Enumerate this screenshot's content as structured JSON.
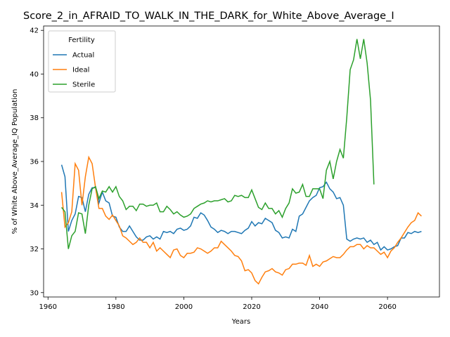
{
  "chart_data": {
    "type": "line",
    "title": "Score_2_in_AFRAID_TO_WALK_IN_THE_DARK_for_White_Above_Average_I",
    "x_label": "Years",
    "y_label": "% of White Above_Average_IQ Population",
    "legend_title": "Fertility",
    "legend_position": "upper left",
    "x": [
      1964,
      1965,
      1966,
      1967,
      1968,
      1969,
      1970,
      1971,
      1972,
      1973,
      1974,
      1975,
      1976,
      1977,
      1978,
      1979,
      1980,
      1981,
      1982,
      1983,
      1984,
      1985,
      1986,
      1987,
      1988,
      1989,
      1990,
      1991,
      1992,
      1993,
      1994,
      1995,
      1996,
      1997,
      1998,
      1999,
      2000,
      2001,
      2002,
      2003,
      2004,
      2005,
      2006,
      2007,
      2008,
      2009,
      2010,
      2011,
      2012,
      2013,
      2014,
      2015,
      2016,
      2017,
      2018,
      2019,
      2020,
      2021,
      2022,
      2023,
      2024,
      2025,
      2026,
      2027,
      2028,
      2029,
      2030,
      2031,
      2032,
      2033,
      2034,
      2035,
      2036,
      2037,
      2038,
      2039,
      2040,
      2041,
      2042,
      2043,
      2044,
      2045,
      2046,
      2047,
      2048,
      2049,
      2050,
      2051,
      2052,
      2053,
      2054,
      2055,
      2056,
      2057,
      2058,
      2059,
      2060,
      2061,
      2062,
      2063,
      2064,
      2065,
      2066,
      2067,
      2068,
      2069,
      2070
    ],
    "series": [
      {
        "name": "Actual",
        "color": "#1f77b4",
        "values": [
          35.85,
          35.3,
          32.8,
          33.3,
          33.6,
          34.4,
          34.35,
          33.7,
          34.5,
          34.8,
          34.8,
          34.1,
          34.6,
          34.2,
          34.1,
          33.5,
          33.45,
          33.0,
          32.8,
          32.8,
          33.05,
          32.8,
          32.55,
          32.4,
          32.4,
          32.55,
          32.6,
          32.45,
          32.55,
          32.45,
          32.8,
          32.75,
          32.8,
          32.7,
          32.9,
          32.95,
          32.85,
          32.9,
          33.05,
          33.45,
          33.4,
          33.65,
          33.55,
          33.3,
          33.0,
          32.9,
          32.75,
          32.85,
          32.8,
          32.7,
          32.8,
          32.8,
          32.75,
          32.7,
          32.85,
          32.95,
          33.25,
          33.05,
          33.2,
          33.15,
          33.4,
          33.3,
          33.2,
          32.85,
          32.75,
          32.5,
          32.55,
          32.5,
          32.9,
          32.8,
          33.5,
          33.6,
          33.9,
          34.2,
          34.35,
          34.45,
          34.8,
          34.85,
          35.05,
          34.75,
          34.6,
          34.3,
          34.35,
          34.0,
          32.45,
          32.35,
          32.45,
          32.5,
          32.45,
          32.5,
          32.3,
          32.4,
          32.2,
          32.3,
          31.95,
          32.1,
          31.95,
          32.0,
          32.1,
          32.15,
          32.5,
          32.5,
          32.75,
          32.7,
          32.8,
          32.75,
          32.8
        ]
      },
      {
        "name": "Ideal",
        "color": "#ff7f0e",
        "values": [
          34.6,
          33.0,
          33.2,
          33.7,
          35.9,
          35.6,
          34.0,
          35.3,
          36.2,
          35.9,
          34.8,
          33.85,
          33.85,
          33.5,
          33.35,
          33.55,
          33.3,
          33.05,
          32.6,
          32.5,
          32.35,
          32.2,
          32.3,
          32.5,
          32.3,
          32.3,
          32.05,
          32.3,
          31.9,
          32.05,
          31.9,
          31.75,
          31.6,
          31.95,
          32.0,
          31.7,
          31.6,
          31.8,
          31.8,
          31.85,
          32.05,
          32.0,
          31.9,
          31.8,
          31.9,
          32.05,
          32.05,
          32.35,
          32.2,
          32.05,
          31.9,
          31.7,
          31.65,
          31.45,
          31.0,
          31.05,
          30.9,
          30.55,
          30.4,
          30.7,
          30.95,
          31.0,
          31.1,
          30.95,
          30.9,
          30.8,
          31.05,
          31.1,
          31.3,
          31.3,
          31.35,
          31.35,
          31.25,
          31.7,
          31.2,
          31.3,
          31.2,
          31.4,
          31.45,
          31.55,
          31.65,
          31.6,
          31.6,
          31.75,
          31.95,
          32.1,
          32.1,
          32.2,
          32.2,
          32.0,
          32.15,
          32.05,
          32.05,
          31.9,
          31.75,
          31.85,
          31.6,
          31.9,
          32.05,
          32.3,
          32.5,
          32.75,
          33.0,
          33.2,
          33.3,
          33.65,
          33.5
        ]
      },
      {
        "name": "Sterile",
        "color": "#2ca02c",
        "values": [
          33.9,
          33.7,
          32.0,
          32.6,
          32.8,
          33.65,
          33.6,
          32.7,
          34.0,
          34.75,
          34.85,
          34.3,
          34.65,
          34.6,
          34.85,
          34.6,
          34.85,
          34.4,
          34.2,
          33.8,
          33.95,
          33.95,
          33.75,
          34.05,
          34.05,
          33.95,
          34.0,
          34.0,
          34.1,
          33.7,
          33.7,
          33.95,
          33.8,
          33.6,
          33.7,
          33.55,
          33.45,
          33.5,
          33.6,
          33.85,
          33.95,
          34.05,
          34.1,
          34.2,
          34.15,
          34.2,
          34.2,
          34.25,
          34.3,
          34.15,
          34.2,
          34.45,
          34.4,
          34.45,
          34.35,
          34.35,
          34.7,
          34.3,
          33.9,
          33.8,
          34.1,
          33.85,
          33.85,
          33.6,
          33.75,
          33.45,
          33.85,
          34.1,
          34.75,
          34.55,
          34.6,
          34.95,
          34.4,
          34.4,
          34.75,
          34.75,
          34.75,
          34.3,
          35.6,
          36.0,
          35.2,
          36.0,
          36.55,
          36.15,
          38.0,
          40.2,
          40.65,
          41.6,
          40.7,
          41.6,
          40.5,
          38.8,
          34.95,
          null,
          null,
          null,
          null,
          null,
          null,
          null,
          null,
          null,
          null,
          null,
          null,
          null,
          null
        ]
      }
    ],
    "xlim": [
      1958.7,
      2075.3
    ],
    "ylim": [
      29.8,
      42.2
    ],
    "xticks": [
      1960,
      1980,
      2000,
      2020,
      2040,
      2060
    ],
    "yticks": [
      30,
      32,
      34,
      36,
      38,
      40,
      42
    ]
  }
}
